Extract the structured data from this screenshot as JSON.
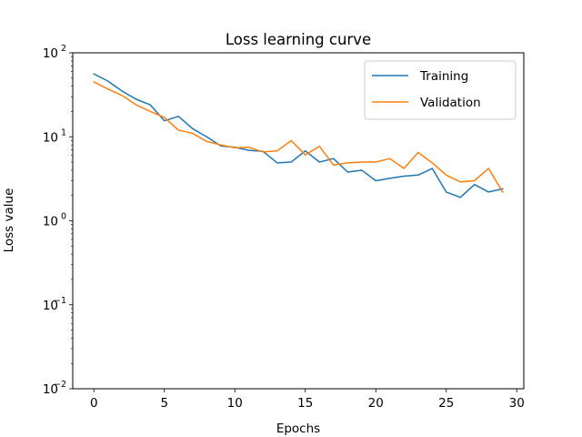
{
  "chart_data": {
    "type": "line",
    "title": "Loss learning curve",
    "xlabel": "Epochs",
    "ylabel": "Loss value",
    "xlim": [
      -1.5,
      30.5
    ],
    "ylim": [
      0.01,
      100
    ],
    "yscale": "log",
    "grid": false,
    "legend_position": "top-right",
    "x_ticks": [
      0,
      5,
      10,
      15,
      20,
      25,
      30
    ],
    "y_ticks": [
      {
        "value": 0.01,
        "base": "10",
        "exp": "−2"
      },
      {
        "value": 0.1,
        "base": "10",
        "exp": "−1"
      },
      {
        "value": 1,
        "base": "10",
        "exp": "0"
      },
      {
        "value": 10,
        "base": "10",
        "exp": "1"
      },
      {
        "value": 100,
        "base": "10",
        "exp": "2"
      }
    ],
    "x": [
      0,
      1,
      2,
      3,
      4,
      5,
      6,
      7,
      8,
      9,
      10,
      11,
      12,
      13,
      14,
      15,
      16,
      17,
      18,
      19,
      20,
      21,
      22,
      23,
      24,
      25,
      26,
      27,
      28,
      29
    ],
    "series": [
      {
        "name": "Training",
        "color": "#1f77b4",
        "values": [
          56,
          46,
          35,
          28,
          24,
          15.5,
          17.5,
          12.5,
          10,
          7.8,
          7.5,
          6.9,
          6.7,
          4.9,
          5.0,
          6.8,
          5.0,
          5.5,
          3.8,
          4.0,
          3.0,
          3.2,
          3.4,
          3.5,
          4.2,
          2.2,
          1.9,
          2.7,
          2.2,
          2.4
        ]
      },
      {
        "name": "Validation",
        "color": "#ff7f0e",
        "values": [
          45,
          37,
          31,
          24,
          20,
          17,
          12,
          11,
          8.8,
          8.0,
          7.4,
          7.5,
          6.6,
          6.8,
          9.0,
          6.1,
          7.7,
          4.6,
          4.9,
          5.0,
          5.0,
          5.5,
          4.2,
          6.5,
          4.9,
          3.5,
          2.9,
          3.0,
          4.2,
          2.2
        ]
      }
    ]
  }
}
